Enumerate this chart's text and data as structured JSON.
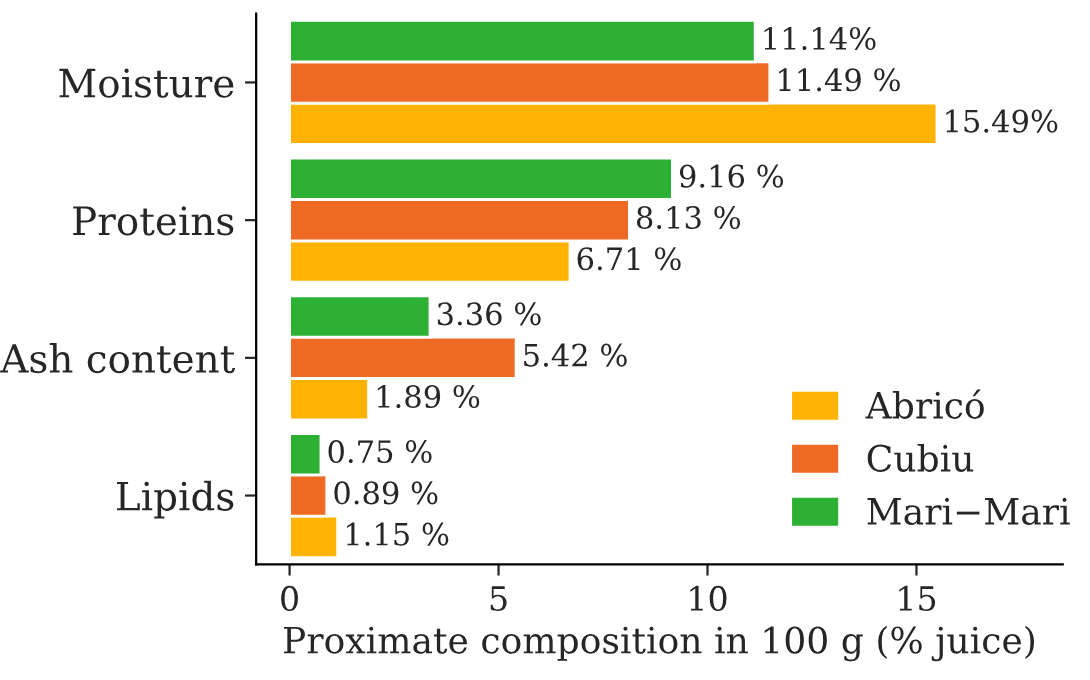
{
  "chart_data": {
    "type": "bar",
    "orientation": "horizontal",
    "xlabel": "Proximate composition in 100 g (% juice)",
    "categories": [
      "Moisture",
      "Proteins",
      "Ash content",
      "Lipids"
    ],
    "series": [
      {
        "name": "Abricó",
        "color": "#ffb300",
        "values": [
          15.49,
          6.71,
          1.89,
          1.15
        ],
        "value_labels": [
          "15.49%",
          "6.71 %",
          "1.89 %",
          "1.15 %"
        ]
      },
      {
        "name": "Cubiu",
        "color": "#ee6a24",
        "values": [
          11.49,
          8.13,
          5.42,
          0.89
        ],
        "value_labels": [
          "11.49 %",
          "8.13 %",
          "5.42 %",
          "0.89 %"
        ]
      },
      {
        "name": "Mari−Mari",
        "color": "#2db034",
        "values": [
          11.14,
          9.16,
          3.36,
          0.75
        ],
        "value_labels": [
          "11.14%",
          "9.16 %",
          "3.36 %",
          "0.75 %"
        ]
      }
    ],
    "xlim": [
      -0.8,
      18.5
    ],
    "xticks": [
      0,
      5,
      10,
      15
    ],
    "grid": false,
    "legend": "bottom right"
  }
}
